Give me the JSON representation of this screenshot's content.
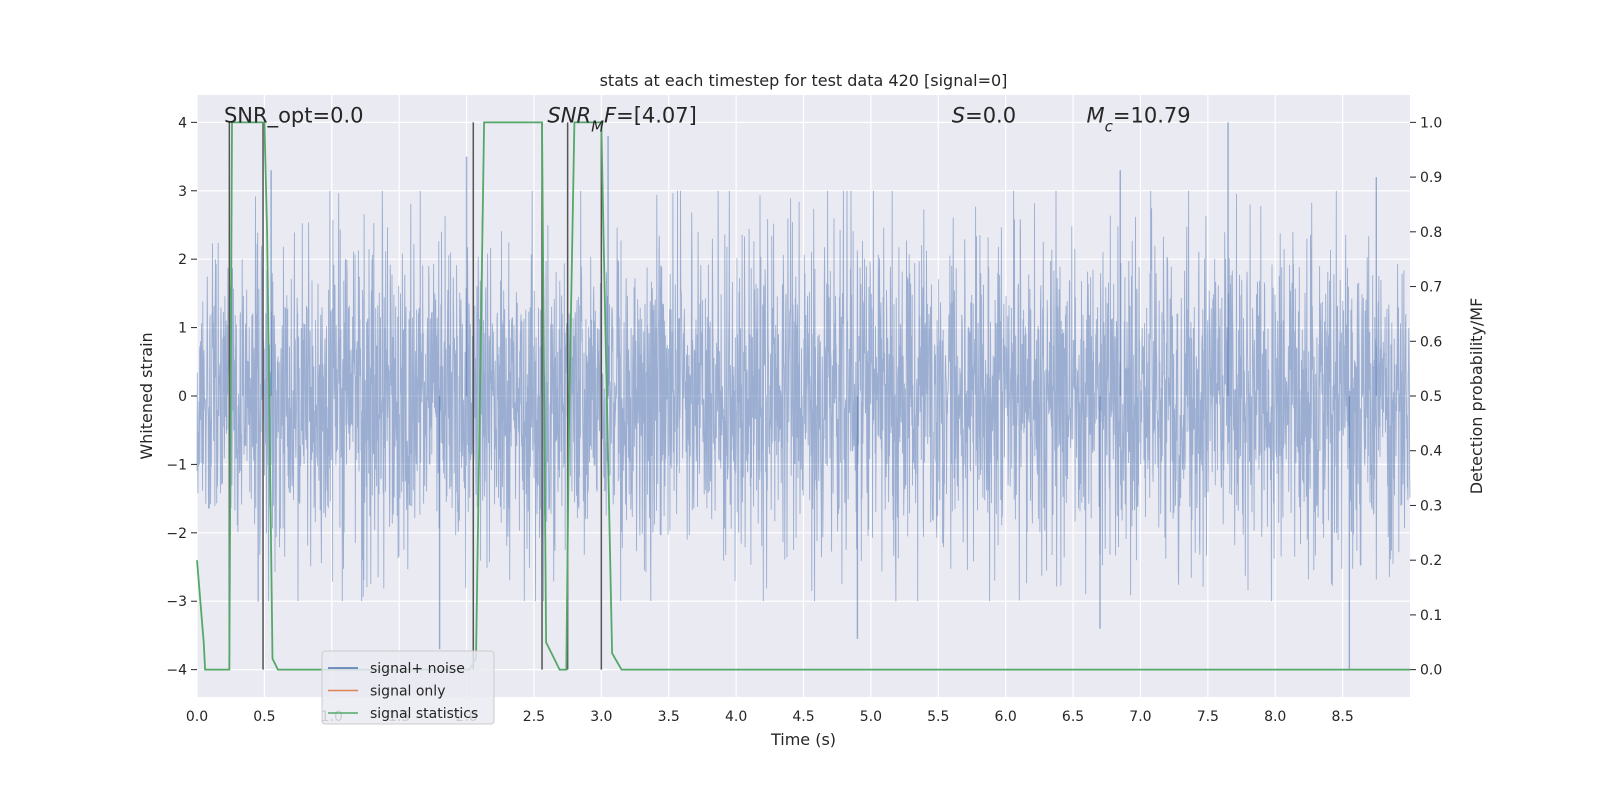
{
  "chart_data": {
    "type": "line",
    "title": "stats at each timestep for test data 420 [signal=0]",
    "xlabel": "Time (s)",
    "ylabel": "Whitened strain",
    "y2label": "Detection probability/MF",
    "xlim": [
      0.0,
      9.0
    ],
    "ylim": [
      -4.4,
      4.4
    ],
    "y2lim": [
      -0.05,
      1.05
    ],
    "xticks": [
      0.0,
      0.5,
      1.0,
      1.5,
      2.0,
      2.5,
      3.0,
      3.5,
      4.0,
      4.5,
      5.0,
      5.5,
      6.0,
      6.5,
      7.0,
      7.5,
      8.0,
      8.5
    ],
    "xtick_labels": [
      "0.0",
      "0.5",
      "1.0",
      "1.5",
      "2.0",
      "2.5",
      "3.0",
      "3.5",
      "4.0",
      "4.5",
      "5.0",
      "5.5",
      "6.0",
      "6.5",
      "7.0",
      "7.5",
      "8.0",
      "8.5"
    ],
    "yticks": [
      -4,
      -3,
      -2,
      -1,
      0,
      1,
      2,
      3,
      4
    ],
    "ytick_labels": [
      "−4",
      "−3",
      "−2",
      "−1",
      "0",
      "1",
      "2",
      "3",
      "4"
    ],
    "y2ticks": [
      0.0,
      0.1,
      0.2,
      0.3,
      0.4,
      0.5,
      0.6,
      0.7,
      0.8,
      0.9,
      1.0
    ],
    "y2tick_labels": [
      "0.0",
      "0.1",
      "0.2",
      "0.3",
      "0.4",
      "0.5",
      "0.6",
      "0.7",
      "0.8",
      "0.9",
      "1.0"
    ],
    "grid": true,
    "legend_position": "bottom-left",
    "annotations": [
      {
        "id": "snr-opt",
        "parts": [
          {
            "text": "SNR_opt=0.0",
            "italic": false
          }
        ],
        "x": 0.2,
        "y": 4.1
      },
      {
        "id": "snr-mf",
        "parts": [
          {
            "text": "SNR",
            "italic": true
          },
          {
            "text": "M",
            "italic": true,
            "sub": true
          },
          {
            "text": "F",
            "italic": true
          },
          {
            "text": "=[4.07]",
            "italic": false
          }
        ],
        "x": 2.6,
        "y": 4.1
      },
      {
        "id": "s-value",
        "parts": [
          {
            "text": "S",
            "italic": true
          },
          {
            "text": "=0.0",
            "italic": false
          }
        ],
        "x": 5.6,
        "y": 4.1
      },
      {
        "id": "mc-value",
        "parts": [
          {
            "text": "M",
            "italic": true
          },
          {
            "text": "c",
            "italic": true,
            "sub": true
          },
          {
            "text": "=10.79",
            "italic": false
          }
        ],
        "x": 6.6,
        "y": 4.1
      }
    ],
    "series": [
      {
        "name": "signal+ noise",
        "color": "#4c72b0",
        "style": "dense noise",
        "n_points": 4000,
        "x_range": [
          0.0,
          9.0
        ],
        "noise_std": 1.0,
        "envelope_extremes": [
          {
            "x": 0.55,
            "y": 3.3
          },
          {
            "x": 2.0,
            "y": 3.5
          },
          {
            "x": 3.05,
            "y": 3.8
          },
          {
            "x": 6.85,
            "y": 3.3
          },
          {
            "x": 7.65,
            "y": 4.0
          },
          {
            "x": 8.75,
            "y": 3.2
          },
          {
            "x": 1.8,
            "y": -3.7
          },
          {
            "x": 2.05,
            "y": -3.6
          },
          {
            "x": 4.9,
            "y": -3.55
          },
          {
            "x": 6.7,
            "y": -3.4
          },
          {
            "x": 8.55,
            "y": -4.0
          }
        ]
      },
      {
        "name": "signal only",
        "color": "#dd8452",
        "x": [],
        "y": []
      },
      {
        "name": "signal statistics",
        "color": "#55a868",
        "axis": "right",
        "x": [
          0.0,
          0.05,
          0.06,
          0.24,
          0.26,
          0.3,
          0.5,
          0.52,
          0.56,
          0.6,
          2.02,
          2.07,
          2.13,
          2.56,
          2.59,
          2.69,
          2.74,
          2.76,
          2.8,
          3.0,
          3.02,
          3.08,
          3.15,
          9.0
        ],
        "y": [
          0.2,
          0.05,
          0.0,
          0.0,
          1.0,
          1.0,
          1.0,
          0.8,
          0.02,
          0.0,
          0.0,
          0.02,
          1.0,
          1.0,
          0.05,
          0.0,
          0.0,
          0.45,
          1.0,
          1.0,
          0.75,
          0.03,
          0.0,
          0.0
        ]
      }
    ],
    "vertical_markers": {
      "color": "#555555",
      "x": [
        0.24,
        0.49,
        2.05,
        2.56,
        2.75,
        3.0
      ],
      "y_range": [
        -4.0,
        4.0
      ]
    },
    "legend": [
      {
        "label": "signal+ noise",
        "color": "#4c72b0"
      },
      {
        "label": "signal only",
        "color": "#dd8452"
      },
      {
        "label": "signal statistics",
        "color": "#55a868"
      }
    ]
  }
}
